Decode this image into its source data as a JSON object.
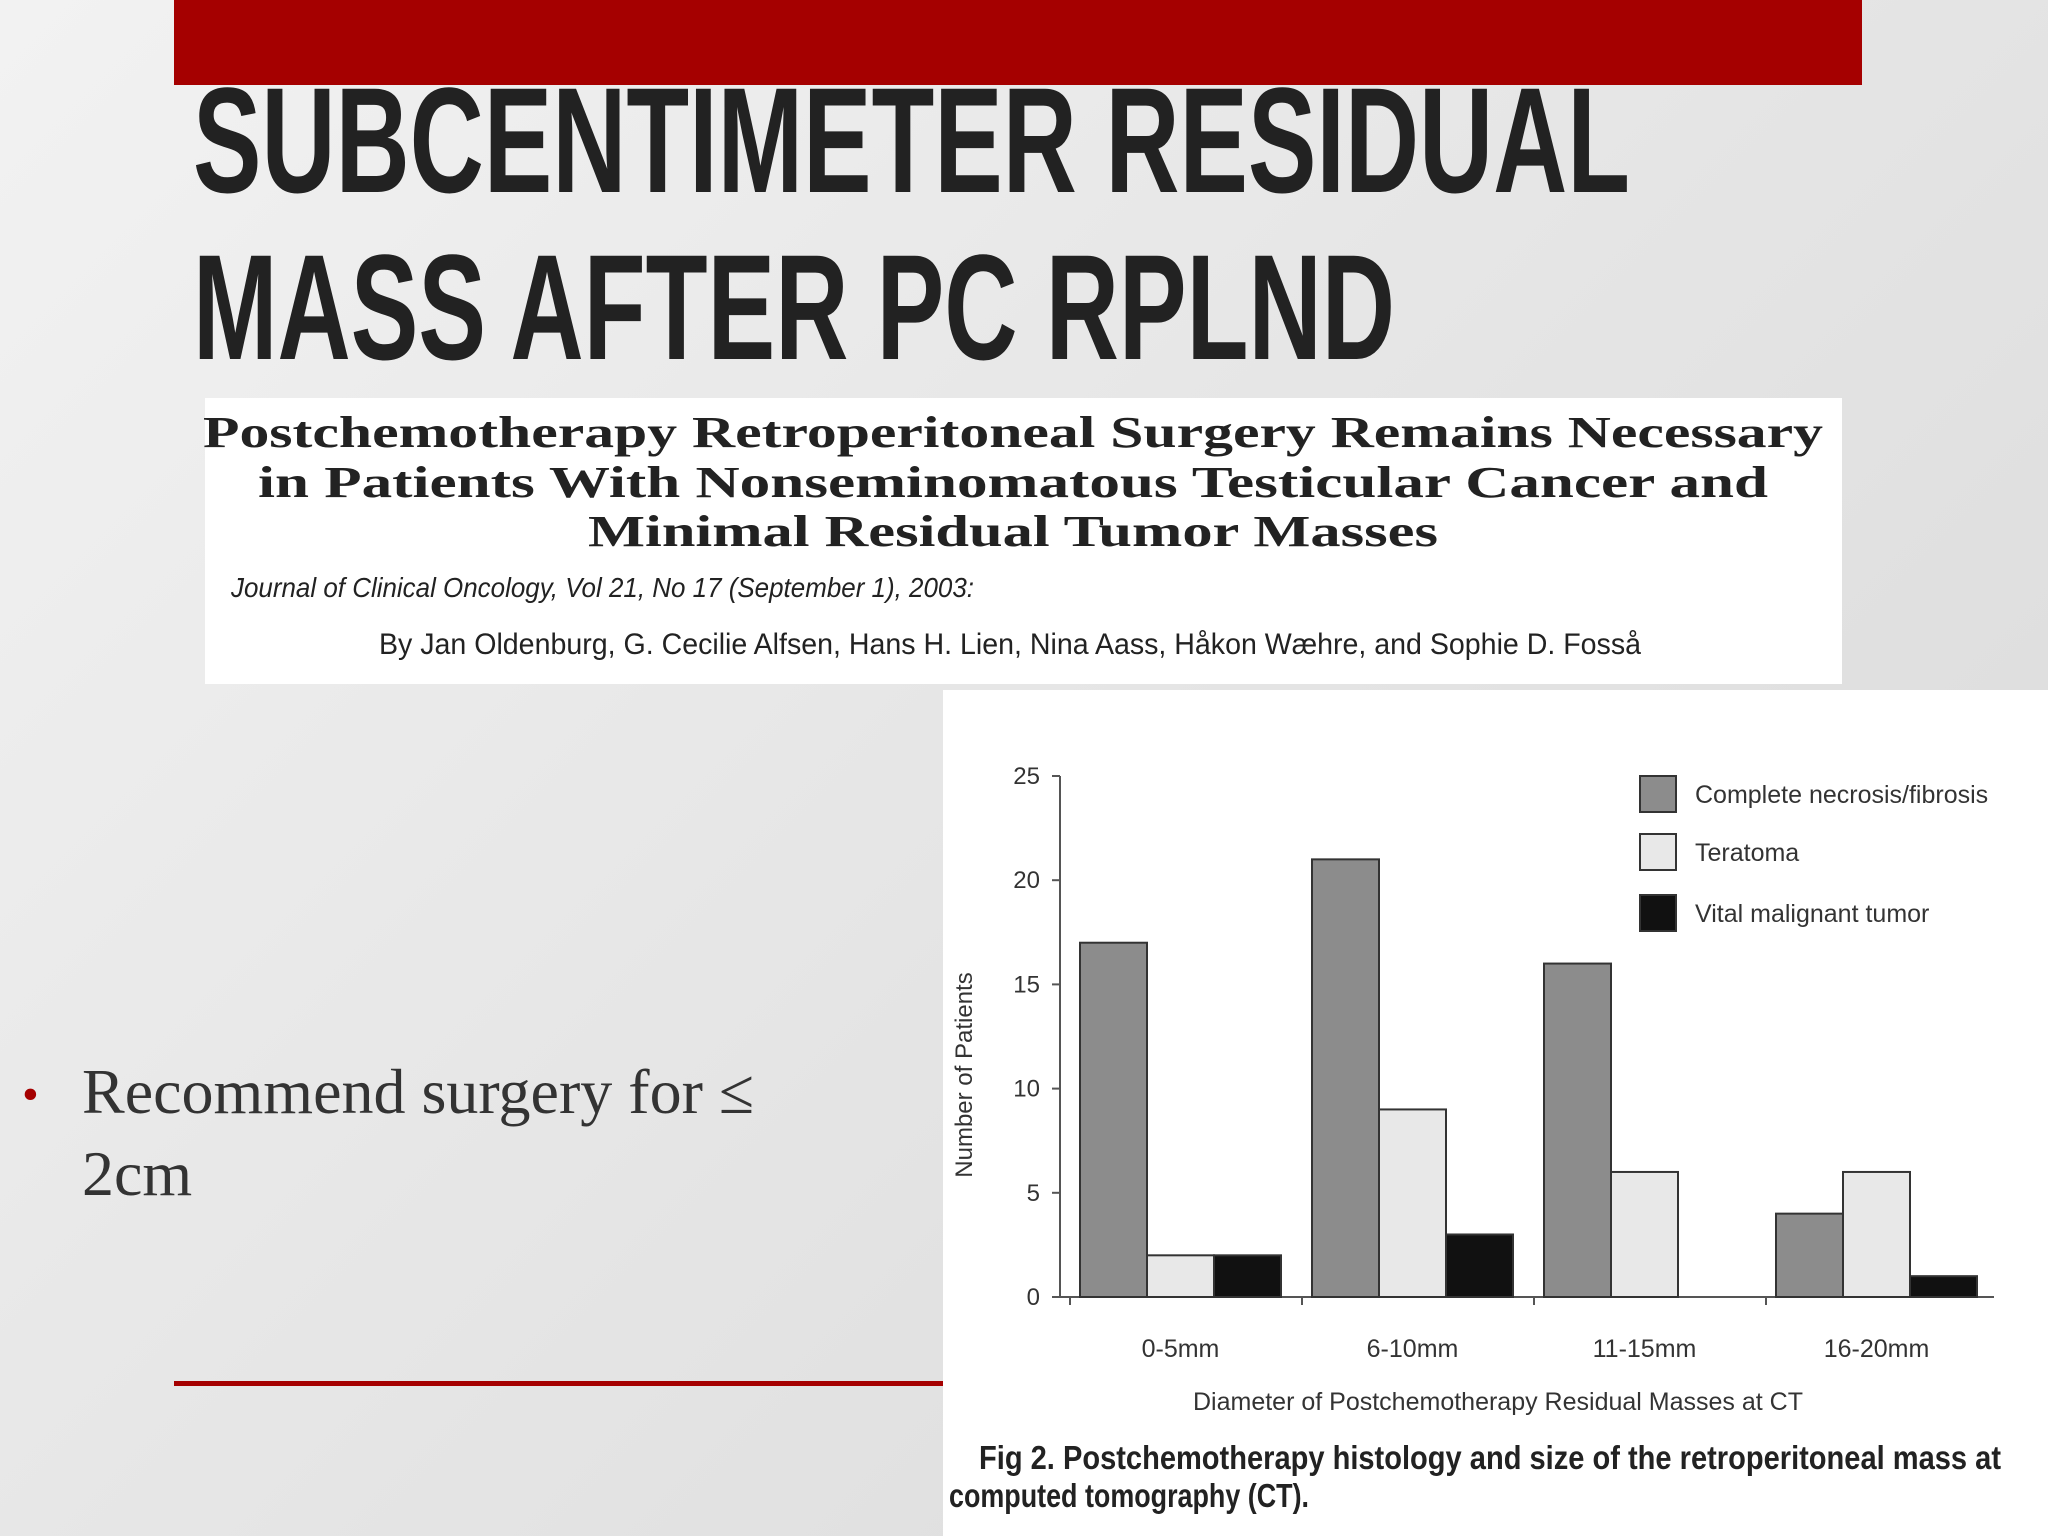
{
  "slide": {
    "title": [
      "SUBCENTIMETER RESIDUAL",
      "MASS AFTER PC RPLND"
    ],
    "paper": {
      "title": [
        "Postchemotherapy Retroperitoneal Surgery Remains Necessary",
        "in Patients With Nonseminomatous Testicular Cancer and",
        "Minimal Residual Tumor Masses"
      ],
      "journal": "Journal of Clinical Oncology, Vol 21, No 17 (September 1), 2003:",
      "authors": "By Jan Oldenburg, G. Cecilie Alfsen, Hans H. Lien, Nina Aass, Håkon Wæhre, and Sophie D. Fosså"
    },
    "bullet": [
      "Recommend surgery for ≤",
      "2cm"
    ]
  },
  "chart_data": {
    "type": "bar",
    "categories": [
      "0-5mm",
      "6-10mm",
      "11-15mm",
      "16-20mm"
    ],
    "series": [
      {
        "name": "Complete necrosis/fibrosis",
        "color": "#8c8c8c",
        "values": [
          17,
          21,
          16,
          4
        ]
      },
      {
        "name": "Teratoma",
        "color": "#e8e8e8",
        "values": [
          2,
          9,
          6,
          6
        ]
      },
      {
        "name": "Vital malignant tumor",
        "color": "#111111",
        "values": [
          2,
          3,
          0,
          1
        ]
      }
    ],
    "ylim": [
      0,
      25
    ],
    "yticks": [
      0,
      5,
      10,
      15,
      20,
      25
    ],
    "ylabel": "Number of Patients",
    "xlabel": "Diameter of Postchemotherapy Residual Masses at CT",
    "caption": [
      "Fig 2.  Postchemotherapy histology and size of the retroperitoneal mass at",
      "computed tomography (CT)."
    ]
  }
}
